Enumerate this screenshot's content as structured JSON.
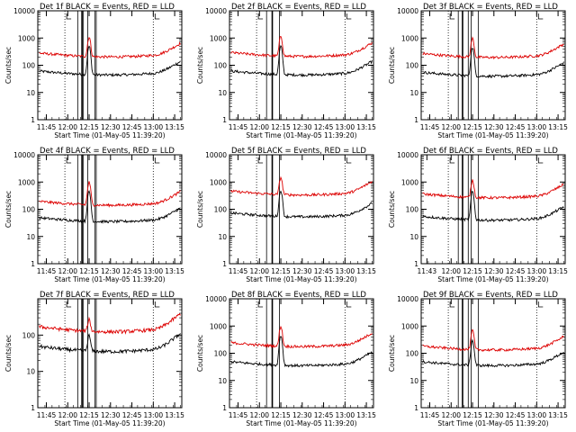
{
  "chart_data": [
    {
      "type": "line",
      "title": "Det 1f BLACK = Events, RED = LLD",
      "xlabel": "Start Time (01-May-05 11:39:20)",
      "ylabel": "Counts/sec",
      "yscale": "log",
      "ylim": [
        1,
        10000
      ],
      "xlim": [
        "11:39",
        "13:20"
      ],
      "yticks": [
        "1",
        "10",
        "100",
        "1000",
        "10000"
      ],
      "xticks": [
        "11:45",
        "12:00",
        "12:15",
        "12:30",
        "12:45",
        "13:00",
        "13:15"
      ],
      "markers_dotted": [
        "11:58",
        "13:00"
      ],
      "markers_solid": [
        "12:07",
        "12:10",
        "12:11",
        "12:14",
        "12:19",
        "12:20"
      ],
      "flare_peak": "12:15",
      "series": [
        {
          "name": "Events",
          "color": "#000000",
          "base": 50,
          "peak": 500
        },
        {
          "name": "LLD",
          "color": "#dd0000",
          "base": 230,
          "peak": 1100
        }
      ]
    },
    {
      "type": "line",
      "title": "Det 2f BLACK = Events, RED = LLD",
      "xlabel": "Start Time (01-May-05 11:39:20)",
      "ylabel": "Counts/sec",
      "yscale": "log",
      "ylim": [
        1,
        10000
      ],
      "xlim": [
        "11:39",
        "13:20"
      ],
      "yticks": [
        "1",
        "10",
        "100",
        "1000",
        "10000"
      ],
      "xticks": [
        "11:45",
        "12:00",
        "12:15",
        "12:30",
        "12:45",
        "13:00",
        "13:15"
      ],
      "markers_dotted": [
        "11:58",
        "13:00"
      ],
      "markers_solid": [
        "12:05",
        "12:09",
        "12:14"
      ],
      "flare_peak": "12:15",
      "series": [
        {
          "name": "Events",
          "color": "#000000",
          "base": 50,
          "peak": 500
        },
        {
          "name": "LLD",
          "color": "#dd0000",
          "base": 240,
          "peak": 1200
        }
      ]
    },
    {
      "type": "line",
      "title": "Det 3f BLACK = Events, RED = LLD",
      "xlabel": "Start Time (01-May-05 11:39:20)",
      "ylabel": "Counts/sec",
      "yscale": "log",
      "ylim": [
        1,
        10000
      ],
      "xlim": [
        "11:39",
        "13:20"
      ],
      "yticks": [
        "1",
        "10",
        "100",
        "1000",
        "10000"
      ],
      "xticks": [
        "11:45",
        "12:00",
        "12:15",
        "12:30",
        "12:45",
        "13:00",
        "13:15"
      ],
      "markers_dotted": [
        "11:58",
        "13:00"
      ],
      "markers_solid": [
        "12:05",
        "12:08",
        "12:12",
        "12:14",
        "12:19"
      ],
      "flare_peak": "12:15",
      "series": [
        {
          "name": "Events",
          "color": "#000000",
          "base": 45,
          "peak": 450
        },
        {
          "name": "LLD",
          "color": "#dd0000",
          "base": 220,
          "peak": 1000
        }
      ]
    },
    {
      "type": "line",
      "title": "Det 4f BLACK = Events, RED = LLD",
      "xlabel": "Start Time (01-May-05 11:39:20)",
      "ylabel": "Counts/sec",
      "yscale": "log",
      "ylim": [
        1,
        10000
      ],
      "xlim": [
        "11:39",
        "13:20"
      ],
      "yticks": [
        "1",
        "10",
        "100",
        "1000",
        "10000"
      ],
      "xticks": [
        "11:45",
        "12:00",
        "12:15",
        "12:30",
        "12:45",
        "13:00",
        "13:15"
      ],
      "markers_dotted": [
        "11:58",
        "13:00"
      ],
      "markers_solid": [
        "12:07",
        "12:10",
        "12:11",
        "12:14",
        "12:19",
        "12:20"
      ],
      "flare_peak": "12:15",
      "series": [
        {
          "name": "Events",
          "color": "#000000",
          "base": 40,
          "peak": 450
        },
        {
          "name": "LLD",
          "color": "#dd0000",
          "base": 160,
          "peak": 1000
        }
      ]
    },
    {
      "type": "line",
      "title": "Det 5f BLACK = Events, RED = LLD",
      "xlabel": "Start Time (01-May-05 11:39:20)",
      "ylabel": "Counts/sec",
      "yscale": "log",
      "ylim": [
        1,
        10000
      ],
      "xlim": [
        "11:39",
        "13:20"
      ],
      "yticks": [
        "1",
        "10",
        "100",
        "1000",
        "10000"
      ],
      "xticks": [
        "11:45",
        "12:00",
        "12:15",
        "12:30",
        "12:45",
        "13:00",
        "13:15"
      ],
      "markers_dotted": [
        "11:58",
        "13:00"
      ],
      "markers_solid": [
        "12:05",
        "12:09",
        "12:14"
      ],
      "flare_peak": "12:15",
      "series": [
        {
          "name": "Events",
          "color": "#000000",
          "base": 60,
          "peak": 500
        },
        {
          "name": "LLD",
          "color": "#dd0000",
          "base": 380,
          "peak": 1500
        }
      ]
    },
    {
      "type": "line",
      "title": "Det 6f BLACK = Events, RED = LLD",
      "xlabel": "Start Time (01-May-05 11:39:20)",
      "ylabel": "Counts/sec",
      "yscale": "log",
      "ylim": [
        1,
        10000
      ],
      "xlim": [
        "11:39",
        "13:20"
      ],
      "yticks": [
        "1",
        "10",
        "100",
        "1000",
        "10000"
      ],
      "xticks": [
        "11:43",
        "12:00",
        "12:15",
        "12:30",
        "12:45",
        "13:00",
        "13:15"
      ],
      "markers_dotted": [
        "11:58",
        "13:00"
      ],
      "markers_solid": [
        "12:05",
        "12:08",
        "12:12",
        "12:14",
        "12:19"
      ],
      "flare_peak": "12:15",
      "series": [
        {
          "name": "Events",
          "color": "#000000",
          "base": 45,
          "peak": 450
        },
        {
          "name": "LLD",
          "color": "#dd0000",
          "base": 300,
          "peak": 1200
        }
      ]
    },
    {
      "type": "line",
      "title": "Det 7f BLACK = Events, RED = LLD",
      "xlabel": "Start Time (01-May-05 11:39:20)",
      "ylabel": "Counts/sec",
      "yscale": "log",
      "ylim": [
        1,
        1000
      ],
      "xlim": [
        "11:39",
        "13:20"
      ],
      "yticks": [
        "1",
        "10",
        "100"
      ],
      "xticks": [
        "11:45",
        "12:00",
        "12:15",
        "12:30",
        "12:45",
        "13:00",
        "13:15"
      ],
      "markers_dotted": [
        "11:58",
        "13:00"
      ],
      "markers_solid": [
        "12:07",
        "12:10",
        "12:11",
        "12:14",
        "12:19",
        "12:20"
      ],
      "flare_peak": "12:15",
      "series": [
        {
          "name": "Events",
          "color": "#000000",
          "base": 40,
          "peak": 100
        },
        {
          "name": "LLD",
          "color": "#dd0000",
          "base": 140,
          "peak": 280
        }
      ]
    },
    {
      "type": "line",
      "title": "Det 8f BLACK = Events, RED = LLD",
      "xlabel": "Start Time (01-May-05 11:39:20)",
      "ylabel": "Counts/sec",
      "yscale": "log",
      "ylim": [
        1,
        10000
      ],
      "xlim": [
        "11:39",
        "13:20"
      ],
      "yticks": [
        "1",
        "10",
        "100",
        "1000",
        "10000"
      ],
      "xticks": [
        "11:45",
        "12:00",
        "12:15",
        "12:30",
        "12:45",
        "13:00",
        "13:15"
      ],
      "markers_dotted": [
        "11:58",
        "13:00"
      ],
      "markers_solid": [
        "12:05",
        "12:09",
        "12:14"
      ],
      "flare_peak": "12:15",
      "series": [
        {
          "name": "Events",
          "color": "#000000",
          "base": 40,
          "peak": 450
        },
        {
          "name": "LLD",
          "color": "#dd0000",
          "base": 200,
          "peak": 1000
        }
      ]
    },
    {
      "type": "line",
      "title": "Det 9f BLACK = Events, RED = LLD",
      "xlabel": "Start Time (01-May-05 11:39:20)",
      "ylabel": "Counts/sec",
      "yscale": "log",
      "ylim": [
        1,
        10000
      ],
      "xlim": [
        "11:39",
        "13:20"
      ],
      "yticks": [
        "1",
        "10",
        "100",
        "1000",
        "10000"
      ],
      "xticks": [
        "11:45",
        "12:00",
        "12:15",
        "12:30",
        "12:45",
        "13:00",
        "13:15"
      ],
      "markers_dotted": [
        "11:58",
        "13:00"
      ],
      "markers_solid": [
        "12:05",
        "12:08",
        "12:12",
        "12:14",
        "12:19"
      ],
      "flare_peak": "12:15",
      "series": [
        {
          "name": "Events",
          "color": "#000000",
          "base": 40,
          "peak": 300
        },
        {
          "name": "LLD",
          "color": "#dd0000",
          "base": 150,
          "peak": 700
        }
      ]
    }
  ]
}
